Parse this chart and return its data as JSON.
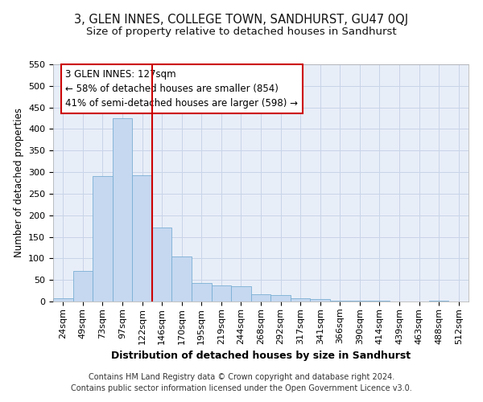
{
  "title": "3, GLEN INNES, COLLEGE TOWN, SANDHURST, GU47 0QJ",
  "subtitle": "Size of property relative to detached houses in Sandhurst",
  "xlabel": "Distribution of detached houses by size in Sandhurst",
  "ylabel": "Number of detached properties",
  "categories": [
    "24sqm",
    "49sqm",
    "73sqm",
    "97sqm",
    "122sqm",
    "146sqm",
    "170sqm",
    "195sqm",
    "219sqm",
    "244sqm",
    "268sqm",
    "292sqm",
    "317sqm",
    "341sqm",
    "366sqm",
    "390sqm",
    "414sqm",
    "439sqm",
    "463sqm",
    "488sqm",
    "512sqm"
  ],
  "values": [
    8,
    70,
    290,
    425,
    293,
    172,
    105,
    42,
    38,
    35,
    17,
    15,
    8,
    5,
    2,
    1,
    1,
    0,
    0,
    1,
    0
  ],
  "bar_color": "#c5d8f0",
  "bar_edge_color": "#7aafd4",
  "vline_x_index": 4,
  "vline_color": "#cc0000",
  "annotation_line1": "3 GLEN INNES: 127sqm",
  "annotation_line2": "← 58% of detached houses are smaller (854)",
  "annotation_line3": "41% of semi-detached houses are larger (598) →",
  "annotation_box_color": "#ffffff",
  "annotation_box_edge": "#cc0000",
  "grid_color": "#c8d4e8",
  "background_color": "#e8eef8",
  "footer_line1": "Contains HM Land Registry data © Crown copyright and database right 2024.",
  "footer_line2": "Contains public sector information licensed under the Open Government Licence v3.0.",
  "title_fontsize": 10.5,
  "subtitle_fontsize": 9.5,
  "ylabel_fontsize": 8.5,
  "xlabel_fontsize": 9,
  "tick_fontsize": 8,
  "annotation_fontsize": 8.5,
  "footer_fontsize": 7,
  "ylim": [
    0,
    550
  ],
  "yticks": [
    0,
    50,
    100,
    150,
    200,
    250,
    300,
    350,
    400,
    450,
    500,
    550
  ]
}
